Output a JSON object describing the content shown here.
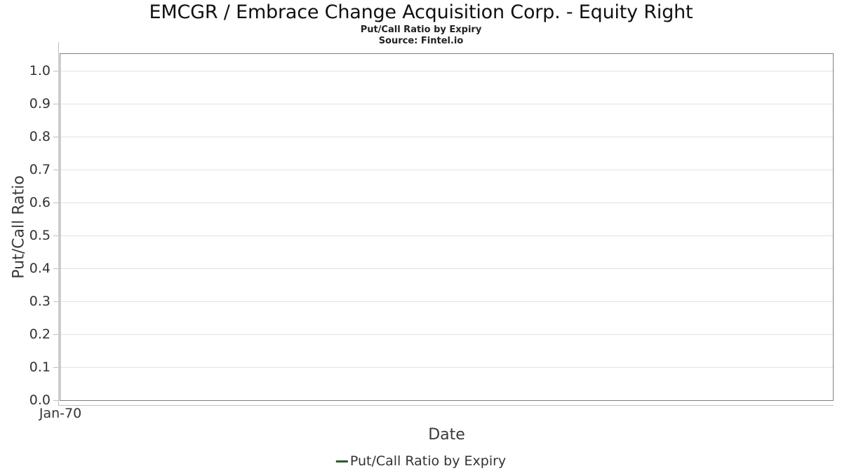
{
  "chart_data": {
    "type": "line",
    "title": "EMCGR / Embrace Change Acquisition Corp. - Equity Right",
    "subtitle": "Put/Call Ratio by Expiry",
    "source": "Source: Fintel.io",
    "xlabel": "Date",
    "ylabel": "Put/Call Ratio",
    "x_tick_labels": [
      "Jan-70"
    ],
    "y_ticks": [
      0.0,
      0.1,
      0.2,
      0.3,
      0.4,
      0.5,
      0.6,
      0.7,
      0.8,
      0.9,
      1.0
    ],
    "ylim": [
      0.0,
      1.05
    ],
    "grid": "horizontal-only",
    "legend_position": "bottom-center",
    "plot_is_empty": true,
    "series": [
      {
        "name": "Put/Call Ratio by Expiry",
        "color": "#2a5c2e",
        "x": [],
        "values": []
      }
    ]
  },
  "colors": {
    "series_green": "#2a5c2e",
    "gridline": "#e2e2e2",
    "frame_border": "#7f7f7f",
    "axis_line": "#bfbfbf",
    "tick_text": "#333333",
    "title_text": "#111111"
  }
}
